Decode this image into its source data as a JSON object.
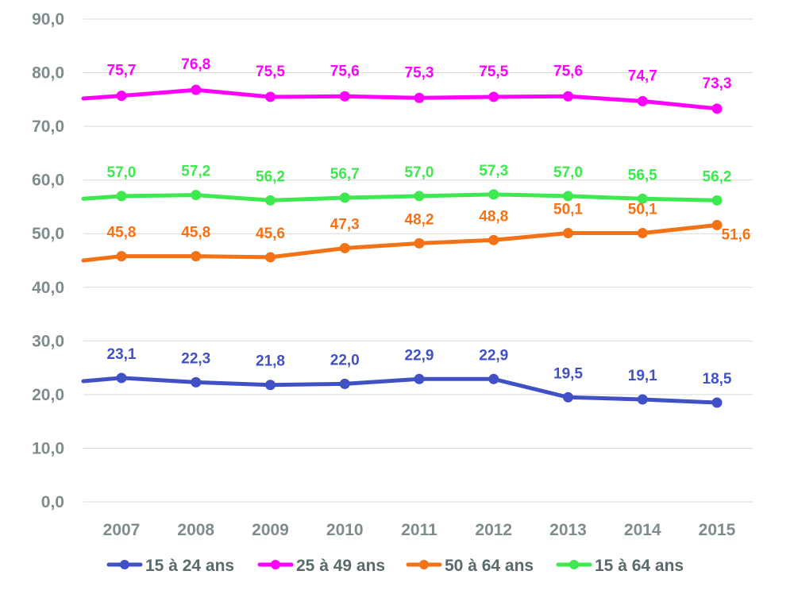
{
  "chart_data": {
    "type": "line",
    "title": "",
    "xlabel": "",
    "ylabel": "",
    "x": [
      "2007",
      "2008",
      "2009",
      "2010",
      "2011",
      "2012",
      "2013",
      "2014",
      "2015"
    ],
    "ylim": [
      0,
      90
    ],
    "yticks": [
      "0,0",
      "10,0",
      "20,0",
      "30,0",
      "40,0",
      "50,0",
      "60,0",
      "70,0",
      "80,0",
      "90,0"
    ],
    "grid": true,
    "legend_position": "bottom",
    "series": [
      {
        "name": "15 à 24 ans",
        "color": "#3f51c4",
        "start_value": 22.5,
        "values": [
          23.1,
          22.3,
          21.8,
          22.0,
          22.9,
          22.9,
          19.5,
          19.1,
          18.5
        ],
        "labels": [
          "23,1",
          "22,3",
          "21,8",
          "22,0",
          "22,9",
          "22,9",
          "19,5",
          "19,1",
          "18,5"
        ]
      },
      {
        "name": "25 à 49 ans",
        "color": "#ff00ff",
        "start_value": 75.2,
        "values": [
          75.7,
          76.8,
          75.5,
          75.6,
          75.3,
          75.5,
          75.6,
          74.7,
          73.3
        ],
        "labels": [
          "75,7",
          "76,8",
          "75,5",
          "75,6",
          "75,3",
          "75,5",
          "75,6",
          "74,7",
          "73,3"
        ]
      },
      {
        "name": "50 à 64 ans",
        "color": "#f47216",
        "start_value": 45.0,
        "values": [
          45.8,
          45.8,
          45.6,
          47.3,
          48.2,
          48.8,
          50.1,
          50.1,
          51.6
        ],
        "labels": [
          "45,8",
          "45,8",
          "45,6",
          "47,3",
          "48,2",
          "48,8",
          "50,1",
          "50,1",
          "51,6"
        ]
      },
      {
        "name": "15 à 64 ans",
        "color": "#3ee84f",
        "start_value": 56.5,
        "values": [
          57.0,
          57.2,
          56.2,
          56.7,
          57.0,
          57.3,
          57.0,
          56.5,
          56.2
        ],
        "labels": [
          "57,0",
          "57,2",
          "56,2",
          "56,7",
          "57,0",
          "57,3",
          "57,0",
          "56,5",
          "56,2"
        ]
      }
    ]
  }
}
